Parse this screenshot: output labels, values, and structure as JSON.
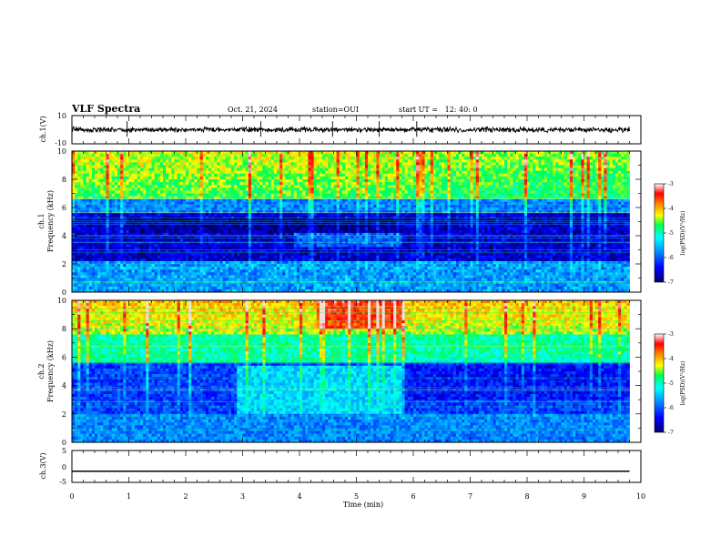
{
  "header": {
    "title": "VLF Spectra",
    "date": "Oct. 21, 2024",
    "station": "station=OUI",
    "start_time": "start UT =   12: 40: 0"
  },
  "chart_data": [
    {
      "id": "ch1_waveform",
      "type": "line",
      "ylabel": "ch.1(V)",
      "ylim": [
        -10,
        10
      ],
      "yticks": [
        "10",
        "-10"
      ],
      "xlim": [
        0,
        10
      ],
      "x": [
        0,
        9.8
      ],
      "y": [
        0,
        0
      ],
      "note_amplitude_V": 1.5,
      "spikes_min": [
        0.97,
        3.32,
        4.58,
        5.4,
        6.06
      ]
    },
    {
      "id": "ch1_spectrogram",
      "type": "heatmap",
      "ylabel": "ch.1\nFrequency (kHz)",
      "ylabel_line1": "ch.1",
      "ylabel_line2": "Frequency (kHz)",
      "xlim": [
        0,
        10
      ],
      "ylim": [
        0,
        10
      ],
      "yticks": [
        "0",
        "2",
        "4",
        "6",
        "8",
        "10"
      ],
      "data_end_min": 9.8,
      "quiet_band_kHz": [
        2.5,
        6
      ],
      "emission_band_kHz": [
        0.3,
        2
      ],
      "enhanced_segment": {
        "t_min": [
          3.9,
          5.8
        ],
        "f_kHz": [
          3.2,
          4.3
        ]
      },
      "colorbar": {
        "label": "log(PSD)(V²/Hz)",
        "range": [
          -7,
          -3
        ],
        "ticks": [
          "-3",
          "-4",
          "-5",
          "-6",
          "-7"
        ]
      }
    },
    {
      "id": "ch2_spectrogram",
      "type": "heatmap",
      "ylabel": "ch.2\nFrequency (kHz)",
      "ylabel_line1": "ch.2",
      "ylabel_line2": "Frequency (kHz)",
      "xlim": [
        0,
        10
      ],
      "ylim": [
        0,
        10
      ],
      "yticks": [
        "0",
        "2",
        "4",
        "6",
        "8",
        "10"
      ],
      "data_end_min": 9.8,
      "enhanced_segment": {
        "t_min": [
          2.9,
          5.8
        ],
        "f_kHz": [
          2,
          5.5
        ]
      },
      "intense_patch": {
        "t_min": [
          4.3,
          5.8
        ],
        "f_kHz": [
          8,
          10
        ]
      },
      "colorbar": {
        "label": "log(PSD)(V²/Hz)",
        "range": [
          -7,
          -3
        ],
        "ticks": [
          "-3",
          "-4",
          "-5",
          "-6",
          "-7"
        ]
      }
    },
    {
      "id": "ch3_trace",
      "type": "line",
      "ylabel": "ch.3(V)",
      "ylim": [
        -5,
        5
      ],
      "yticks": [
        "5",
        "0",
        "-5"
      ],
      "xlim": [
        0,
        10
      ],
      "x": [
        0,
        9.8
      ],
      "y": [
        -1.5,
        -1.5
      ],
      "xlabel": "Time (min)",
      "xticks": [
        "0",
        "1",
        "2",
        "3",
        "4",
        "5",
        "6",
        "7",
        "8",
        "9",
        "10"
      ]
    }
  ],
  "colormap": [
    "#000080",
    "#0000ff",
    "#0096ff",
    "#00ffff",
    "#00ff64",
    "#a0ff00",
    "#ffff00",
    "#ff8000",
    "#ff0000",
    "#ffffff"
  ]
}
